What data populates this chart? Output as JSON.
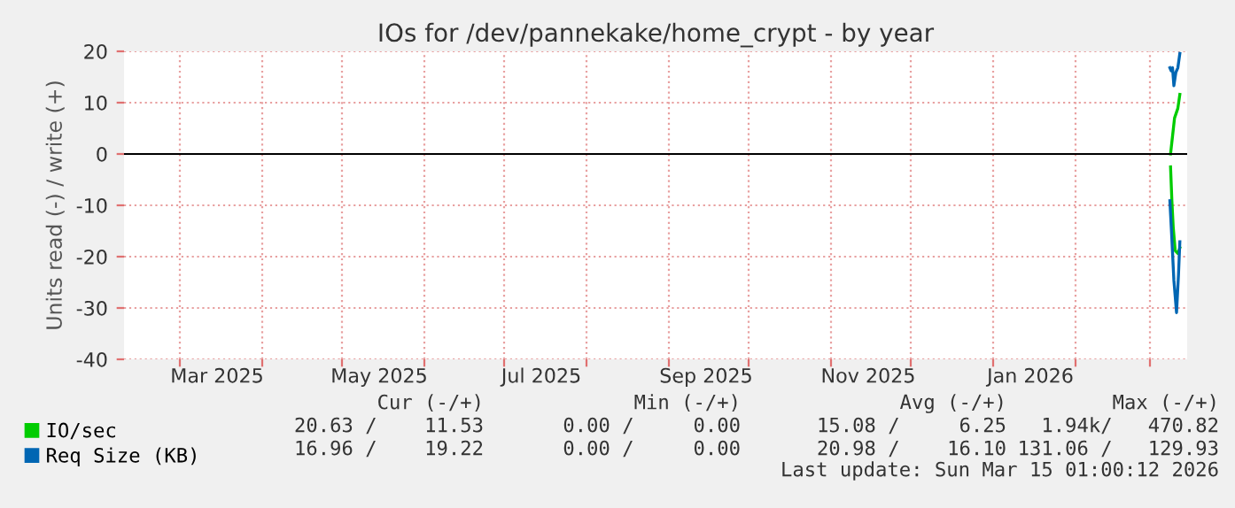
{
  "chart_data": {
    "type": "line",
    "title": "IOs for /dev/pannekake/home_crypt - by year",
    "ylabel": "Units read (-) / write (+)",
    "xlim": [
      "2025-02-08",
      "2026-03-15"
    ],
    "ylim": [
      -40,
      20
    ],
    "yticks": [
      -40,
      -30,
      -20,
      -10,
      0,
      10,
      20
    ],
    "xticks": [
      {
        "value": "2025-03-01",
        "label": null
      },
      {
        "value": "2025-03-15",
        "label": "Mar 2025"
      },
      {
        "value": "2025-04-01",
        "label": null
      },
      {
        "value": "2025-05-01",
        "label": null
      },
      {
        "value": "2025-05-15",
        "label": "May 2025"
      },
      {
        "value": "2025-06-01",
        "label": null
      },
      {
        "value": "2025-07-01",
        "label": null
      },
      {
        "value": "2025-07-15",
        "label": "Jul 2025"
      },
      {
        "value": "2025-08-01",
        "label": null
      },
      {
        "value": "2025-09-01",
        "label": null
      },
      {
        "value": "2025-09-15",
        "label": "Sep 2025"
      },
      {
        "value": "2025-10-01",
        "label": null
      },
      {
        "value": "2025-11-01",
        "label": null
      },
      {
        "value": "2025-11-15",
        "label": "Nov 2025"
      },
      {
        "value": "2025-12-01",
        "label": null
      },
      {
        "value": "2026-01-01",
        "label": null
      },
      {
        "value": "2026-01-15",
        "label": "Jan 2026"
      },
      {
        "value": "2026-02-01",
        "label": null
      },
      {
        "value": "2026-03-01",
        "label": null
      }
    ],
    "grid": true,
    "legend": "bottom left",
    "series": [
      {
        "name": "IO/sec",
        "color": "#00cc00",
        "x": [
          "2026-03-08T18:00",
          "2026-03-09T12:00",
          "2026-03-10T06:00",
          "2026-03-11T12:00",
          "2026-03-12T06:00"
        ],
        "values": [
          0,
          3.5,
          7,
          8.9,
          11.6
        ]
      },
      {
        "color": "#00cc00",
        "x": [
          "2026-03-08T18:00",
          "2026-03-09T06:00",
          "2026-03-09T18:00",
          "2026-03-10T12:00",
          "2026-03-11T12:00",
          "2026-03-12T06:00"
        ],
        "values": [
          -2.5,
          -9.1,
          -14.2,
          -18.8,
          -19.4,
          -18.3
        ]
      },
      {
        "name": "Req Size (KB)",
        "color": "#0066b3",
        "x": [
          "2026-03-08T12:00",
          "2026-03-09T00:00",
          "2026-03-09T12:00",
          "2026-03-10T00:00",
          "2026-03-10T18:00",
          "2026-03-11T12:00",
          "2026-03-12T06:00"
        ],
        "values": [
          16.8,
          16.2,
          16.8,
          13.3,
          15.9,
          16.8,
          19.6
        ]
      },
      {
        "color": "#0066b3",
        "x": [
          "2026-03-08T12:00",
          "2026-03-09T06:00",
          "2026-03-10T00:00",
          "2026-03-11T00:00",
          "2026-03-11T18:00",
          "2026-03-12T06:00"
        ],
        "values": [
          -9.1,
          -16.6,
          -24.6,
          -30.9,
          -23.4,
          -17.1
        ]
      }
    ],
    "ref_lines": [
      {
        "axis": "y",
        "value": 0,
        "color": "#000000"
      }
    ],
    "annotations": [
      "Cur (-/+)",
      "Min (-/+)",
      "Avg (-/+)",
      "Max (-/+)",
      "20.63 /    11.53",
      "0.00 /     0.00",
      "15.08 /     6.25",
      "1.94k/   470.82",
      "16.96 /    19.22",
      "0.00 /     0.00",
      "20.98 /    16.10",
      "131.06 /   129.93",
      "Last update: Sun Mar 15 01:00:12 2026"
    ]
  }
}
